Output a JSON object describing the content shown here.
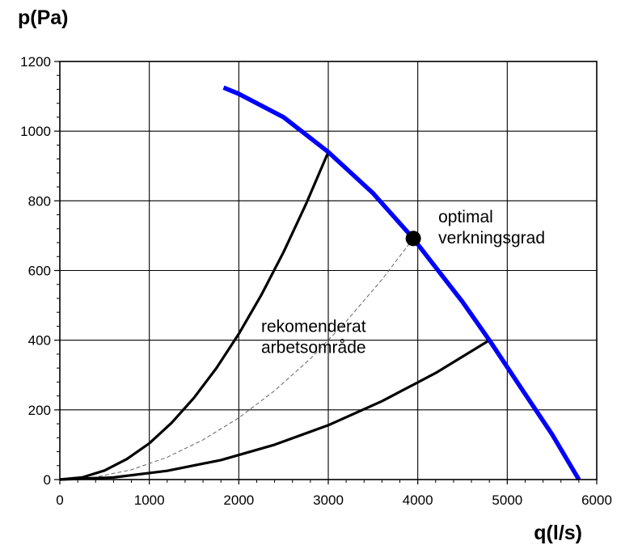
{
  "chart_data": {
    "type": "line",
    "xlabel": "q(l/s)",
    "ylabel": "p(Pa)",
    "xlim": [
      0,
      6000
    ],
    "ylim": [
      0,
      1200
    ],
    "x_ticks": [
      0,
      1000,
      2000,
      3000,
      4000,
      5000,
      6000
    ],
    "y_ticks": [
      0,
      200,
      400,
      600,
      800,
      1000,
      1200
    ],
    "grid": true,
    "series": [
      {
        "role": "fan-curve",
        "color": "#0000ff",
        "x": [
          1830,
          2000,
          2500,
          3000,
          3500,
          3950,
          4500,
          4800,
          5200,
          5500,
          5800
        ],
        "y": [
          1125,
          1107,
          1040,
          940,
          822,
          692,
          510,
          400,
          245,
          130,
          0
        ]
      },
      {
        "role": "system-curve-upper",
        "color": "#000000",
        "x": [
          0,
          250,
          500,
          750,
          1000,
          1250,
          1500,
          1750,
          2000,
          2250,
          2500,
          2750,
          3000
        ],
        "y": [
          0,
          6,
          26,
          59,
          104,
          163,
          235,
          320,
          418,
          529,
          653,
          790,
          940
        ]
      },
      {
        "role": "system-curve-optimal",
        "color": "#666666",
        "x": [
          0,
          400,
          800,
          1200,
          1600,
          2000,
          2400,
          2800,
          3200,
          3600,
          3950
        ],
        "y": [
          0,
          7,
          28,
          64,
          114,
          177,
          255,
          347,
          454,
          574,
          692
        ]
      },
      {
        "role": "system-curve-lower",
        "color": "#000000",
        "x": [
          0,
          600,
          1200,
          1800,
          2400,
          3000,
          3600,
          4200,
          4800
        ],
        "y": [
          0,
          6,
          25,
          56,
          100,
          156,
          225,
          306,
          400
        ]
      }
    ],
    "marker": {
      "x": 3950,
      "y": 692
    },
    "annotations": [
      {
        "key": "optimal",
        "lines": [
          "optimal",
          "verkningsgrad"
        ],
        "x": 4230,
        "y": 738
      },
      {
        "key": "range",
        "lines": [
          "rekomenderat",
          "arbetsområde"
        ],
        "x": 2250,
        "y": 424
      }
    ]
  }
}
